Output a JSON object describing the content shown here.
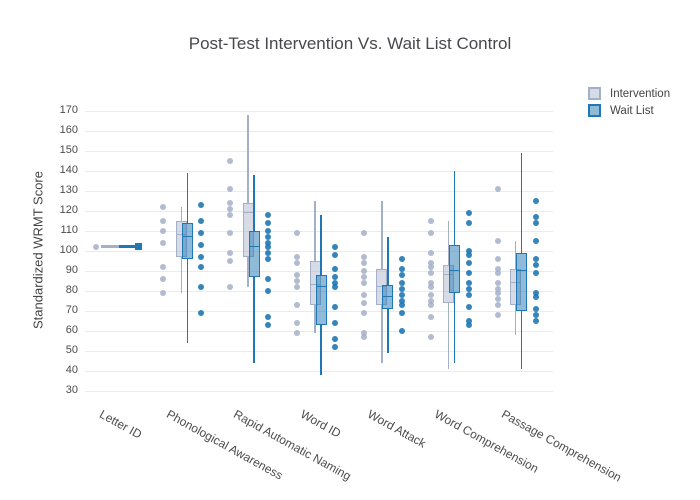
{
  "title": "Post-Test Intervention Vs. Wait List Control",
  "legend": {
    "items": [
      {
        "label": "Intervention"
      },
      {
        "label": "Wait List"
      }
    ]
  },
  "ylabel": "Standardized WRMT Score",
  "chart_data": {
    "type": "box",
    "title": "Post-Test Intervention Vs. Wait List Control",
    "xlabel": "",
    "ylabel": "Standardized WRMT Score",
    "ylim": [
      30,
      170
    ],
    "ytick_step": 10,
    "grid": true,
    "legend_position": "top-right",
    "show_points": true,
    "categories": [
      "Letter ID",
      "Phonological Awareness",
      "Rapid Automatic Naming",
      "Word ID",
      "Word Attack",
      "Word Comprehension",
      "Passage Comprehension"
    ],
    "series": [
      {
        "name": "Intervention",
        "line_color": "#a4b0c8",
        "fill_color": "rgba(164,176,200,0.45)",
        "marker_color": "#a4b0c8",
        "boxes": [
          {
            "lo": 102,
            "q1": 102,
            "med": 102,
            "q3": 102,
            "hi": 102
          },
          {
            "lo": 79,
            "q1": 97,
            "med": 108,
            "q3": 115,
            "hi": 122
          },
          {
            "lo": 82,
            "q1": 97,
            "med": 119,
            "q3": 124,
            "hi": 168
          },
          {
            "lo": 59,
            "q1": 73,
            "med": 83,
            "q3": 95,
            "hi": 125
          },
          {
            "lo": 44,
            "q1": 73,
            "med": 82,
            "q3": 91,
            "hi": 125
          },
          {
            "lo": 41,
            "q1": 74,
            "med": 88,
            "q3": 93,
            "hi": 115
          },
          {
            "lo": 58,
            "q1": 73,
            "med": 84,
            "q3": 91,
            "hi": 105
          }
        ],
        "points": [
          [
            102
          ],
          [
            122,
            115,
            110,
            104,
            92,
            86,
            79
          ],
          [
            145,
            131,
            124,
            121,
            118,
            109,
            99,
            95,
            82
          ],
          [
            109,
            97,
            94,
            88,
            85,
            82,
            73,
            64,
            59
          ],
          [
            109,
            97,
            94,
            90,
            87,
            84,
            78,
            74,
            69,
            59,
            57
          ],
          [
            115,
            109,
            99,
            94,
            92,
            89,
            84,
            82,
            78,
            75,
            73,
            67,
            57
          ],
          [
            131,
            105,
            96,
            91,
            89,
            84,
            81,
            79,
            76,
            73,
            68
          ]
        ]
      },
      {
        "name": "Wait List",
        "line_color": "#1f77b4",
        "fill_color": "rgba(31,119,180,0.5)",
        "marker_color": "#1f77b4",
        "boxes": [
          {
            "lo": 102,
            "q1": 102,
            "med": 102,
            "q3": 102,
            "hi": 102
          },
          {
            "lo": 54,
            "q1": 96,
            "med": 107,
            "q3": 114,
            "hi": 139
          },
          {
            "lo": 44,
            "q1": 87,
            "med": 102,
            "q3": 110,
            "hi": 138
          },
          {
            "lo": 38,
            "q1": 63,
            "med": 82,
            "q3": 88,
            "hi": 118
          },
          {
            "lo": 49,
            "q1": 71,
            "med": 77,
            "q3": 83,
            "hi": 107
          },
          {
            "lo": 44,
            "q1": 79,
            "med": 90,
            "q3": 103,
            "hi": 140
          },
          {
            "lo": 41,
            "q1": 70,
            "med": 90,
            "q3": 99,
            "hi": 149
          }
        ],
        "points": [
          [],
          [
            123,
            115,
            109,
            103,
            97,
            92,
            82,
            69
          ],
          [
            118,
            114,
            110,
            107,
            104,
            102,
            99,
            96,
            86,
            80,
            67,
            63
          ],
          [
            102,
            98,
            91,
            87,
            84,
            82,
            72,
            64,
            56,
            52
          ],
          [
            96,
            91,
            88,
            84,
            81,
            78,
            75,
            73,
            69,
            60
          ],
          [
            119,
            114,
            100,
            98,
            94,
            89,
            84,
            81,
            78,
            72,
            65,
            63
          ],
          [
            125,
            117,
            114,
            105,
            96,
            93,
            89,
            79,
            77,
            71,
            68,
            65
          ]
        ]
      }
    ]
  }
}
